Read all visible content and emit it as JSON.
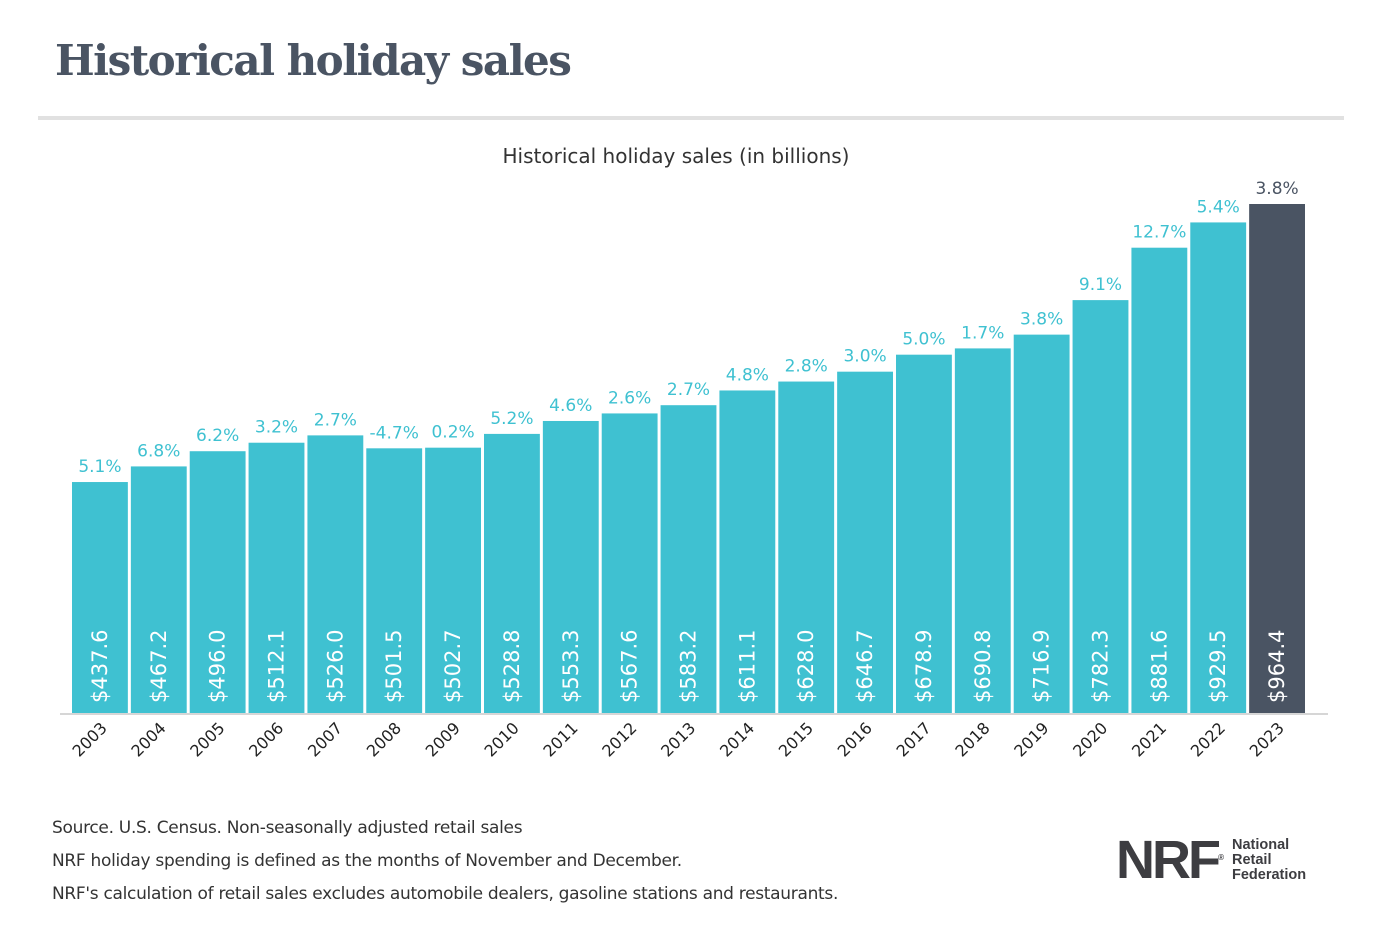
{
  "page": {
    "title": "Historical holiday sales",
    "footnotes": [
      "Source. U.S. Census. Non-seasonally adjusted retail sales",
      "NRF holiday spending is defined as the months of November and December.",
      "NRF's calculation of retail sales excludes automobile dealers, gasoline stations and restaurants."
    ],
    "logo": {
      "mark": "NRF",
      "registered": "®",
      "lines": [
        "National",
        "Retail",
        "Federation"
      ]
    }
  },
  "colors": {
    "bar": "#3fc1d1",
    "highlight_bar": "#4a5463",
    "growth_label": "#3fc1d1",
    "highlight_growth_label": "#4a5463",
    "axis": "#d6d6d6",
    "tick_label": "#222222",
    "value_label": "#ffffff"
  },
  "chart_data": {
    "type": "bar",
    "title": "Historical holiday sales (in billions)",
    "xlabel": "",
    "ylabel": "",
    "ylim": [
      0,
      964.4
    ],
    "grid": false,
    "legend": "none",
    "categories": [
      "2003",
      "2004",
      "2005",
      "2006",
      "2007",
      "2008",
      "2009",
      "2010",
      "2011",
      "2012",
      "2013",
      "2014",
      "2015",
      "2016",
      "2017",
      "2018",
      "2019",
      "2020",
      "2021",
      "2022",
      "2023"
    ],
    "values": [
      437.6,
      467.2,
      496.0,
      512.1,
      526.0,
      501.5,
      502.7,
      528.8,
      553.3,
      567.6,
      583.2,
      611.1,
      628.0,
      646.7,
      678.9,
      690.8,
      716.9,
      782.3,
      881.6,
      929.5,
      964.4
    ],
    "value_labels": [
      "$437.6",
      "$467.2",
      "$496.0",
      "$512.1",
      "$526.0",
      "$501.5",
      "$502.7",
      "$528.8",
      "$553.3",
      "$567.6",
      "$583.2",
      "$611.1",
      "$628.0",
      "$646.7",
      "$678.9",
      "$690.8",
      "$716.9",
      "$782.3",
      "$881.6",
      "$929.5",
      "$964.4"
    ],
    "growth_labels": [
      "5.1%",
      "6.8%",
      "6.2%",
      "3.2%",
      "2.7%",
      "-4.7%",
      "0.2%",
      "5.2%",
      "4.6%",
      "2.6%",
      "2.7%",
      "4.8%",
      "2.8%",
      "3.0%",
      "5.0%",
      "1.7%",
      "3.8%",
      "9.1%",
      "12.7%",
      "5.4%",
      "3.8%"
    ],
    "highlight_index": 20
  }
}
